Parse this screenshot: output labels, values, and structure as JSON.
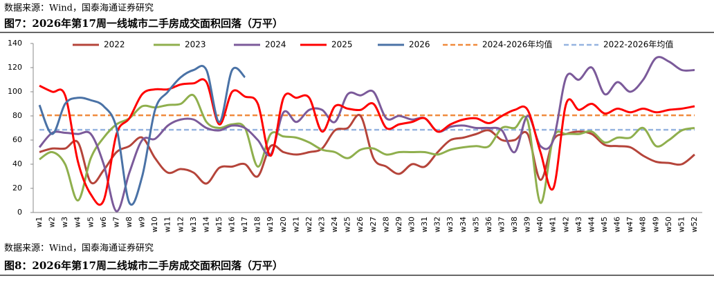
{
  "header_source": "数据来源：Wind，国泰海通证券研究",
  "chart_data": {
    "type": "line",
    "title": "图7：2026年第17周一线城市二手房成交面积回落（万平）",
    "categories": [
      "w1",
      "w2",
      "w3",
      "w4",
      "w5",
      "w6",
      "w7",
      "w8",
      "w9",
      "w10",
      "w11",
      "w12",
      "w13",
      "w14",
      "w15",
      "w16",
      "w17",
      "w18",
      "w19",
      "w20",
      "w21",
      "w22",
      "w23",
      "w24",
      "w25",
      "w26",
      "w27",
      "w28",
      "w29",
      "w30",
      "w31",
      "w32",
      "w33",
      "w34",
      "w35",
      "w36",
      "w37",
      "w38",
      "w39",
      "w40",
      "w41",
      "w42",
      "w43",
      "w44",
      "w45",
      "w46",
      "w47",
      "w48",
      "w49",
      "w50",
      "w51",
      "w52"
    ],
    "ylim": [
      0,
      140
    ],
    "yticks": [
      0,
      20,
      40,
      60,
      80,
      100,
      120,
      140
    ],
    "series": [
      {
        "name": "2022",
        "color": "#b5443a",
        "values": [
          50,
          53,
          53,
          58,
          25,
          35,
          50,
          55,
          62,
          45,
          33,
          36,
          33,
          24,
          37,
          38,
          40,
          30,
          55,
          50,
          48,
          50,
          53,
          68,
          70,
          80,
          45,
          38,
          32,
          40,
          38,
          50,
          60,
          62,
          65,
          68,
          60,
          60,
          65,
          27,
          60,
          65,
          67,
          65,
          56,
          55,
          54,
          47,
          42,
          41,
          40,
          48
        ]
      },
      {
        "name": "2023",
        "color": "#8faf4d",
        "values": [
          44,
          50,
          40,
          10,
          45,
          62,
          73,
          78,
          88,
          87,
          89,
          90,
          97,
          75,
          70,
          73,
          70,
          38,
          65,
          63,
          62,
          58,
          52,
          50,
          45,
          52,
          53,
          48,
          50,
          50,
          50,
          48,
          52,
          54,
          55,
          55,
          70,
          70,
          76,
          8,
          62,
          65,
          65,
          67,
          58,
          62,
          62,
          70,
          55,
          60,
          68,
          70
        ]
      },
      {
        "name": "2024",
        "color": "#7b5a9a",
        "values": [
          54,
          66,
          66,
          65,
          65,
          40,
          1,
          33,
          60,
          61,
          72,
          77,
          77,
          70,
          68,
          72,
          70,
          60,
          48,
          83,
          75,
          85,
          85,
          75,
          98,
          97,
          100,
          78,
          80,
          77,
          78,
          67,
          71,
          72,
          70,
          70,
          68,
          50,
          80,
          55,
          60,
          112,
          110,
          120,
          98,
          108,
          100,
          110,
          128,
          125,
          118,
          118
        ]
      },
      {
        "name": "2025",
        "color": "#ff0000",
        "values": [
          105,
          100,
          97,
          42,
          15,
          10,
          65,
          78,
          98,
          102,
          102,
          106,
          107,
          108,
          73,
          100,
          96,
          90,
          47,
          95,
          95,
          95,
          67,
          88,
          86,
          85,
          90,
          70,
          73,
          75,
          78,
          67,
          73,
          77,
          78,
          74,
          80,
          85,
          85,
          50,
          20,
          90,
          85,
          90,
          82,
          86,
          83,
          86,
          83,
          85,
          86,
          88
        ]
      },
      {
        "name": "2026",
        "color": "#4a72a6",
        "values": [
          89,
          65,
          90,
          95,
          93,
          88,
          70,
          8,
          30,
          85,
          100,
          112,
          118,
          118,
          75,
          118,
          112,
          null,
          null,
          null,
          null,
          null,
          null,
          null,
          null,
          null,
          null,
          null,
          null,
          null,
          null,
          null,
          null,
          null,
          null,
          null,
          null,
          null,
          null,
          null,
          null,
          null,
          null,
          null,
          null,
          null,
          null,
          null,
          null,
          null,
          null,
          null
        ]
      }
    ],
    "reference_lines": [
      {
        "name": "2024-2026年均值",
        "color": "#f08a3c",
        "value": 80.5
      },
      {
        "name": "2022-2026年均值",
        "color": "#95b3e0",
        "value": 68.5
      }
    ]
  },
  "footer": {
    "source": "数据来源：Wind，国泰海通证券研究",
    "next_title": "图8：2026年第17周二线城市二手房成交面积回落（万平）"
  }
}
